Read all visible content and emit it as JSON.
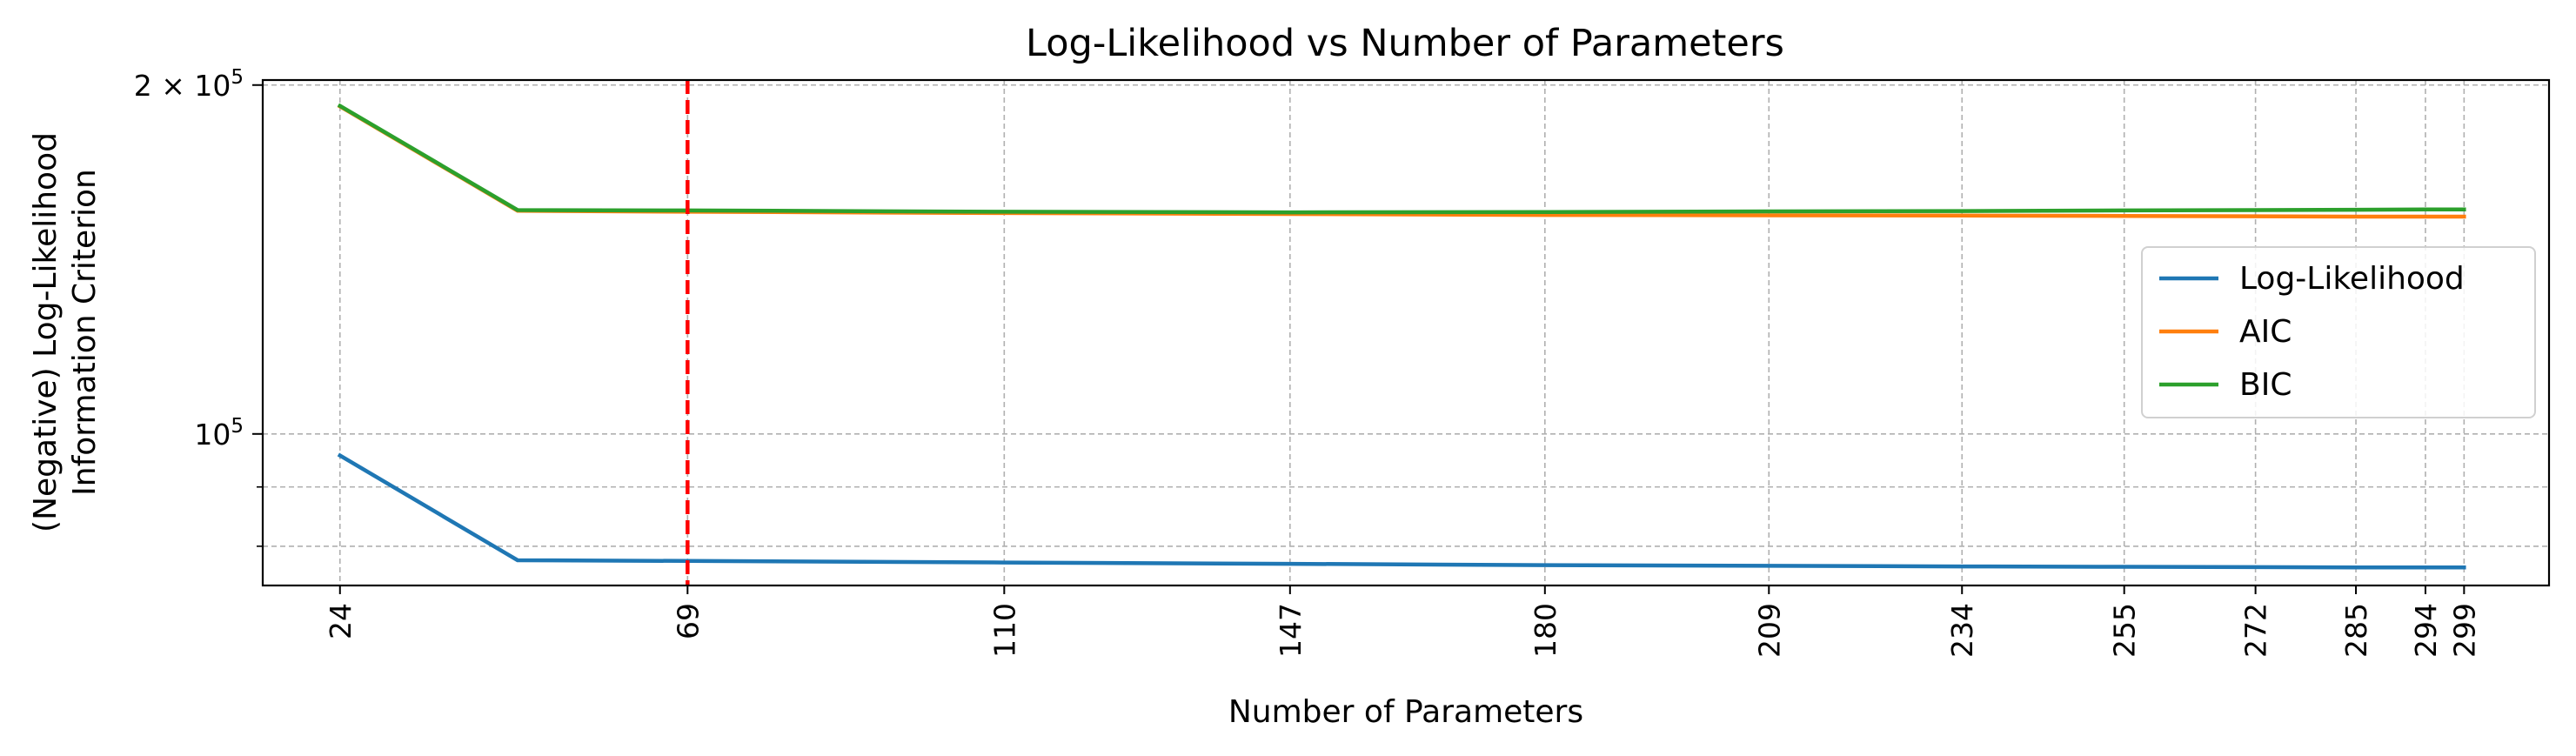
{
  "chart_data": {
    "type": "line",
    "title": "Log-Likelihood vs Number of Parameters",
    "xlabel": "Number of Parameters",
    "ylabel_line1": "(Negative) Log-Likelihood",
    "ylabel_line2": "Information Criterion",
    "xlim": [
      14,
      310
    ],
    "ylim": [
      74000,
      202000
    ],
    "y_scale": "log",
    "grid": true,
    "legend_position": "right",
    "x_ticks": [
      24,
      69,
      110,
      147,
      180,
      209,
      234,
      255,
      272,
      285,
      294,
      299
    ],
    "y_major_ticks": [
      {
        "value": 100000,
        "label_base": "10",
        "label_exp": "5"
      },
      {
        "value": 200000,
        "label_base": "2 × 10",
        "label_exp": "5"
      }
    ],
    "y_minor_ticks": [
      90000,
      80000
    ],
    "x": [
      24,
      47,
      69,
      110,
      147,
      180,
      209,
      234,
      255,
      272,
      285,
      294,
      299
    ],
    "series": [
      {
        "name": "Log-Likelihood",
        "color": "#1f77b4",
        "values": [
          95800,
          77800,
          77700,
          77450,
          77250,
          77050,
          76950,
          76850,
          76800,
          76750,
          76700,
          76700,
          76700
        ]
      },
      {
        "name": "AIC",
        "color": "#ff7f0e",
        "values": [
          191700,
          155800,
          155500,
          155100,
          154800,
          154500,
          154400,
          154300,
          154200,
          154100,
          154000,
          154000,
          154000
        ]
      },
      {
        "name": "BIC",
        "color": "#2ca02c",
        "values": [
          191900,
          156000,
          155900,
          155500,
          155300,
          155400,
          155600,
          155700,
          155900,
          156000,
          156100,
          156200,
          156200
        ]
      }
    ],
    "reference_line": {
      "x": 69,
      "color": "#ff0000"
    }
  }
}
